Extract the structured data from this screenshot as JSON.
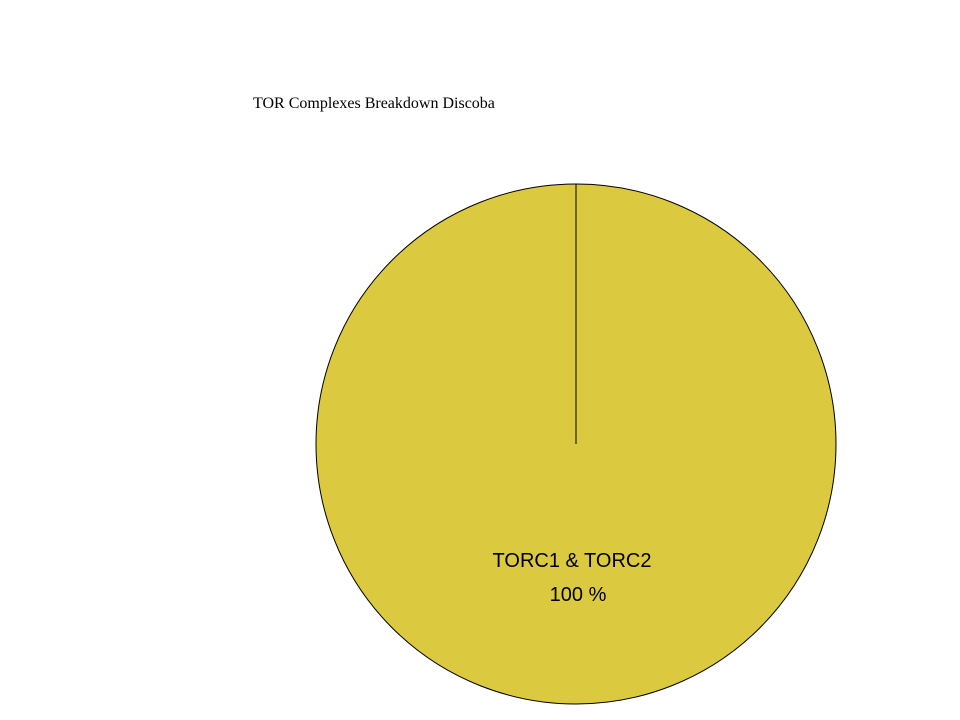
{
  "chart_data": {
    "type": "pie",
    "title": "TOR Complexes Breakdown Discoba",
    "slices": [
      {
        "label": "TORC1 & TORC2",
        "value": 100,
        "value_label": "100 %",
        "color": "#dbca3f"
      }
    ],
    "legend": "none"
  }
}
